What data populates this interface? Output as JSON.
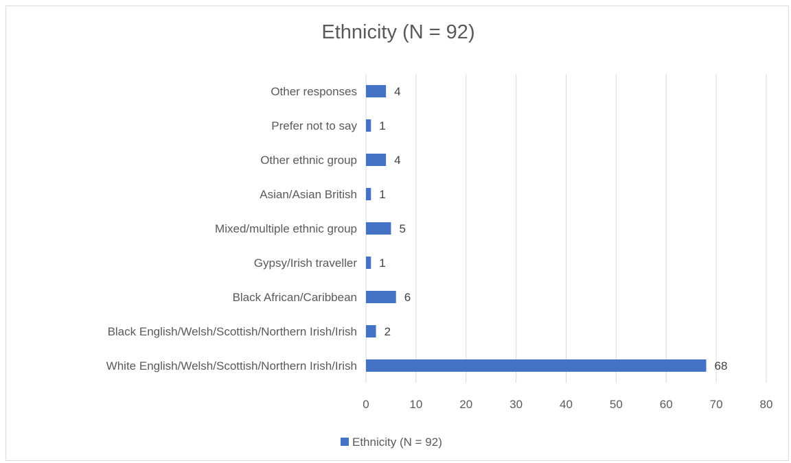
{
  "chart_data": {
    "type": "bar",
    "orientation": "horizontal",
    "title": "Ethnicity (N = 92)",
    "xlabel": "",
    "ylabel": "",
    "categories": [
      "White English/Welsh/Scottish/Northern Irish/Irish",
      "Black English/Welsh/Scottish/Northern Irish/Irish",
      "Black African/Caribbean",
      "Gypsy/Irish traveller",
      "Mixed/multiple ethnic group",
      "Asian/Asian British",
      "Other ethnic group",
      "Prefer not to say",
      "Other responses"
    ],
    "series": [
      {
        "name": "Ethnicity (N = 92)",
        "values": [
          68,
          2,
          6,
          1,
          5,
          1,
          4,
          1,
          4
        ],
        "color": "#4472c4"
      }
    ],
    "xlim": [
      0,
      80
    ],
    "xticks": [
      0,
      10,
      20,
      30,
      40,
      50,
      60,
      70,
      80
    ],
    "grid": "vertical",
    "data_labels": true,
    "legend": "bottom"
  }
}
